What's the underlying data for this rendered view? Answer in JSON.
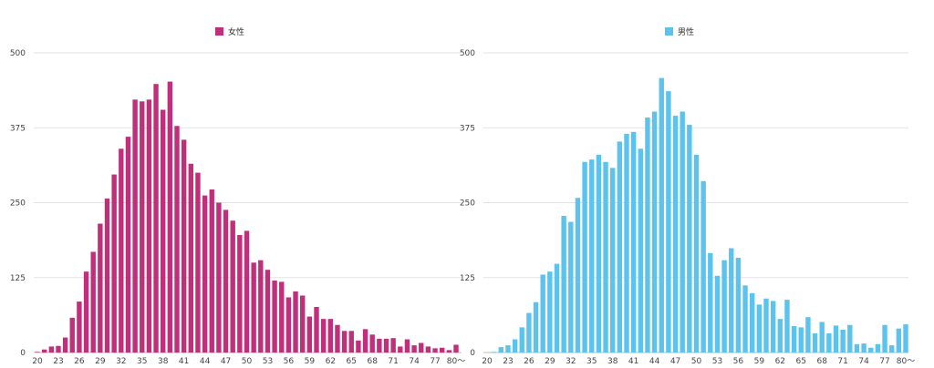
{
  "chart_data": [
    {
      "type": "bar",
      "title": "",
      "legend": "女性",
      "legend_position": "top-center",
      "color": "#c0307a",
      "ylim": [
        0,
        500
      ],
      "y_ticks": [
        0,
        125,
        250,
        375,
        500
      ],
      "y_tick_labels": [
        "0",
        "125",
        "250",
        "375",
        "500"
      ],
      "x_tick_labels": [
        "20",
        "23",
        "26",
        "29",
        "32",
        "35",
        "38",
        "41",
        "44",
        "47",
        "50",
        "53",
        "56",
        "59",
        "62",
        "65",
        "68",
        "71",
        "74",
        "77",
        "80〜"
      ],
      "categories": [
        "20",
        "21",
        "22",
        "23",
        "24",
        "25",
        "26",
        "27",
        "28",
        "29",
        "30",
        "31",
        "32",
        "33",
        "34",
        "35",
        "36",
        "37",
        "38",
        "39",
        "40",
        "41",
        "42",
        "43",
        "44",
        "45",
        "46",
        "47",
        "48",
        "49",
        "50",
        "51",
        "52",
        "53",
        "54",
        "55",
        "56",
        "57",
        "58",
        "59",
        "60",
        "61",
        "62",
        "63",
        "64",
        "65",
        "66",
        "67",
        "68",
        "69",
        "70",
        "71",
        "72",
        "73",
        "74",
        "75",
        "76",
        "77",
        "78",
        "79",
        "80〜"
      ],
      "values": [
        1,
        5,
        10,
        11,
        25,
        58,
        85,
        135,
        168,
        215,
        257,
        297,
        340,
        360,
        422,
        419,
        422,
        448,
        405,
        452,
        378,
        355,
        315,
        300,
        262,
        272,
        250,
        238,
        220,
        196,
        203,
        150,
        154,
        138,
        120,
        118,
        92,
        102,
        95,
        60,
        76,
        56,
        56,
        46,
        36,
        36,
        20,
        39,
        30,
        23,
        23,
        24,
        10,
        22,
        12,
        16,
        10,
        7,
        8,
        4,
        13
      ],
      "grid": true
    },
    {
      "type": "bar",
      "title": "",
      "legend": "男性",
      "legend_position": "top-center",
      "color": "#5bc3ee",
      "ylim": [
        0,
        500
      ],
      "y_ticks": [
        0,
        125,
        250,
        375,
        500
      ],
      "y_tick_labels": [
        "0",
        "125",
        "250",
        "375",
        "500"
      ],
      "x_tick_labels": [
        "20",
        "23",
        "26",
        "29",
        "32",
        "35",
        "38",
        "41",
        "44",
        "47",
        "50",
        "53",
        "56",
        "59",
        "62",
        "65",
        "68",
        "71",
        "74",
        "77",
        "80〜"
      ],
      "categories": [
        "20",
        "21",
        "22",
        "23",
        "24",
        "25",
        "26",
        "27",
        "28",
        "29",
        "30",
        "31",
        "32",
        "33",
        "34",
        "35",
        "36",
        "37",
        "38",
        "39",
        "40",
        "41",
        "42",
        "43",
        "44",
        "45",
        "46",
        "47",
        "48",
        "49",
        "50",
        "51",
        "52",
        "53",
        "54",
        "55",
        "56",
        "57",
        "58",
        "59",
        "60",
        "61",
        "62",
        "63",
        "64",
        "65",
        "66",
        "67",
        "68",
        "69",
        "70",
        "71",
        "72",
        "73",
        "74",
        "75",
        "76",
        "77",
        "78",
        "79",
        "80〜"
      ],
      "values": [
        0,
        1,
        9,
        12,
        22,
        42,
        66,
        84,
        130,
        135,
        148,
        228,
        218,
        258,
        318,
        322,
        330,
        318,
        308,
        352,
        365,
        368,
        340,
        392,
        402,
        458,
        436,
        395,
        402,
        380,
        330,
        286,
        166,
        128,
        154,
        174,
        158,
        112,
        99,
        80,
        90,
        86,
        56,
        88,
        44,
        42,
        59,
        32,
        51,
        32,
        45,
        38,
        46,
        14,
        15,
        8,
        14,
        46,
        12,
        40,
        47
      ],
      "grid": true
    }
  ]
}
